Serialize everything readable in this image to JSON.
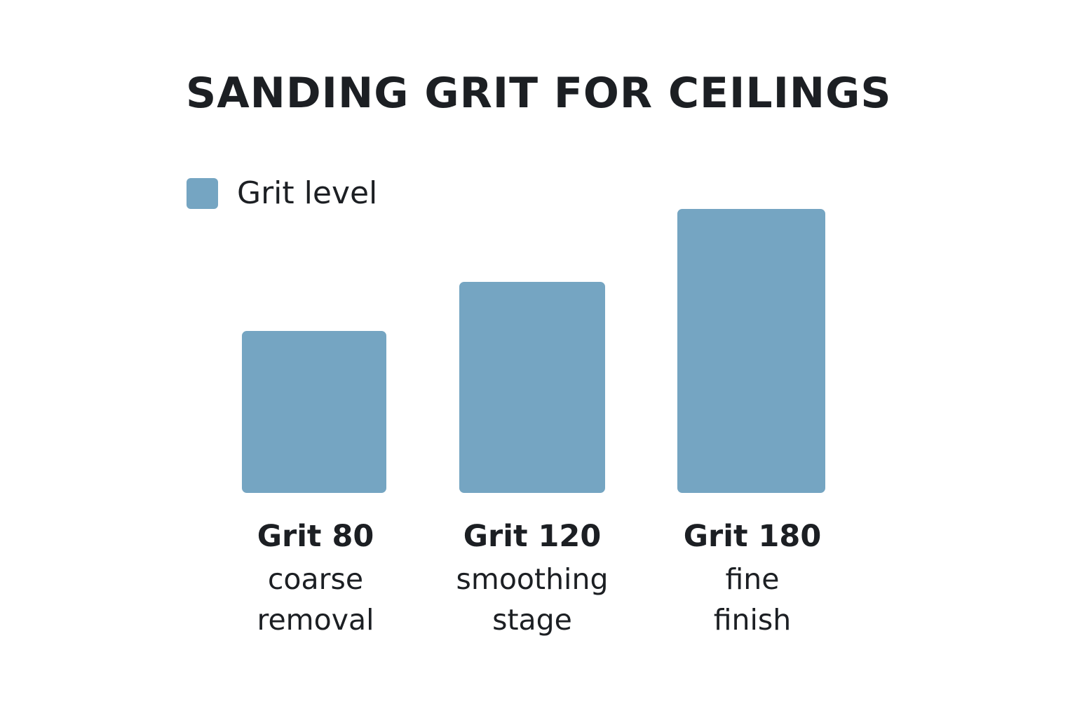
{
  "chart_data": {
    "type": "bar",
    "title": "SANDING GRIT FOR CEILINGS",
    "legend": {
      "label": "Grit level",
      "position": "top-left"
    },
    "categories": [
      "Grit 80",
      "Grit 120",
      "Grit 180"
    ],
    "descriptions": [
      [
        "coarse",
        "removal"
      ],
      [
        "smoothing",
        "stage"
      ],
      [
        "fine",
        "finish"
      ]
    ],
    "series": [
      {
        "name": "Grit level",
        "values": [
          80,
          120,
          180
        ]
      }
    ],
    "color": "#75a5c2",
    "grid": false,
    "axes_visible": false
  }
}
